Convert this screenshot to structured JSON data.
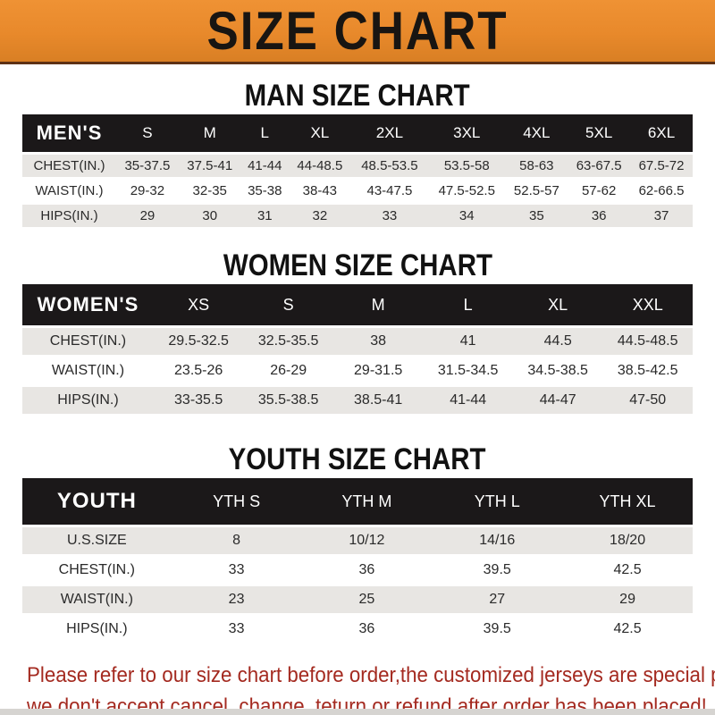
{
  "banner": {
    "title": "SIZE CHART"
  },
  "sections": [
    {
      "heading": "MAN SIZE CHART",
      "header_label": "MEN'S",
      "columns": [
        "S",
        "M",
        "L",
        "XL",
        "2XL",
        "3XL",
        "4XL",
        "5XL",
        "6XL"
      ],
      "rows": [
        {
          "label": "CHEST(IN.)",
          "values": [
            "35-37.5",
            "37.5-41",
            "41-44",
            "44-48.5",
            "48.5-53.5",
            "53.5-58",
            "58-63",
            "63-67.5",
            "67.5-72"
          ]
        },
        {
          "label": "WAIST(IN.)",
          "values": [
            "29-32",
            "32-35",
            "35-38",
            "38-43",
            "43-47.5",
            "47.5-52.5",
            "52.5-57",
            "57-62",
            "62-66.5"
          ]
        },
        {
          "label": "HIPS(IN.)",
          "values": [
            "29",
            "30",
            "31",
            "32",
            "33",
            "34",
            "35",
            "36",
            "37"
          ]
        }
      ]
    },
    {
      "heading": "WOMEN SIZE CHART",
      "header_label": "WOMEN'S",
      "columns": [
        "XS",
        "S",
        "M",
        "L",
        "XL",
        "XXL"
      ],
      "rows": [
        {
          "label": "CHEST(IN.)",
          "values": [
            "29.5-32.5",
            "32.5-35.5",
            "38",
            "41",
            "44.5",
            "44.5-48.5"
          ]
        },
        {
          "label": "WAIST(IN.)",
          "values": [
            "23.5-26",
            "26-29",
            "29-31.5",
            "31.5-34.5",
            "34.5-38.5",
            "38.5-42.5"
          ]
        },
        {
          "label": "HIPS(IN.)",
          "values": [
            "33-35.5",
            "35.5-38.5",
            "38.5-41",
            "41-44",
            "44-47",
            "47-50"
          ]
        }
      ]
    },
    {
      "heading": "YOUTH SIZE CHART",
      "header_label": "YOUTH",
      "columns": [
        "YTH S",
        "YTH M",
        "YTH L",
        "YTH XL"
      ],
      "rows": [
        {
          "label": "U.S.SIZE",
          "values": [
            "8",
            "10/12",
            "14/16",
            "18/20"
          ]
        },
        {
          "label": "CHEST(IN.)",
          "values": [
            "33",
            "36",
            "39.5",
            "42.5"
          ]
        },
        {
          "label": "WAIST(IN.)",
          "values": [
            "23",
            "25",
            "27",
            "29"
          ]
        },
        {
          "label": "HIPS(IN.)",
          "values": [
            "33",
            "36",
            "39.5",
            "42.5"
          ]
        }
      ]
    }
  ],
  "footer": {
    "line1": "Please refer to our size chart before order,the customized jerseys are special products,",
    "line2": "we don't accept cancel, change, teturn or refund after order has been placed!"
  },
  "colors": {
    "banner_bg": "#E8892B",
    "banner_border": "#5E3114",
    "header_bar_bg": "#1B1819",
    "header_bar_text": "#FFFFFF",
    "row_alt_bg": "#E8E6E3",
    "row_bg": "#FFFFFF",
    "heading_text": "#111111",
    "footer_text": "#A42A20"
  }
}
